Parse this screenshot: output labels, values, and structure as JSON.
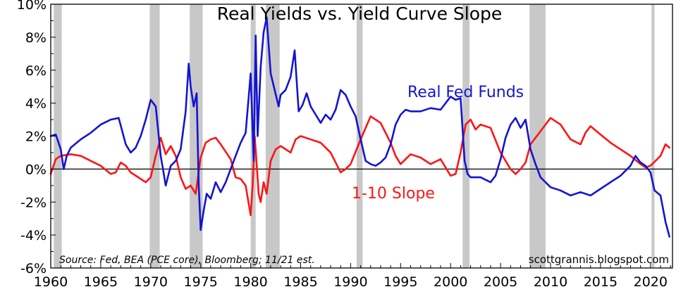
{
  "chart_data": {
    "type": "line",
    "title": "Real Yields vs. Yield Curve Slope",
    "source_note": "Source: Fed, BEA (PCE core), Bloomberg; 11/21 est.",
    "credit": "scottgrannis.blogspot.com",
    "xlim": [
      1960,
      2022.2
    ],
    "ylim": [
      -6,
      10
    ],
    "y_ticks": [
      -6,
      -4,
      -2,
      0,
      2,
      4,
      6,
      8,
      10
    ],
    "y_tick_labels": [
      "-6%",
      "-4%",
      "-2%",
      "0%",
      "2%",
      "4%",
      "6%",
      "8%",
      "10%"
    ],
    "x_ticks": [
      1960,
      1965,
      1970,
      1975,
      1980,
      1985,
      1990,
      1995,
      2000,
      2005,
      2010,
      2015,
      2020
    ],
    "x_tick_labels": [
      "1960",
      "1965",
      "1970",
      "1975",
      "1980",
      "1985",
      "1990",
      "1995",
      "2000",
      "2005",
      "2010",
      "2015",
      "2020"
    ],
    "grid": false,
    "zero_line": true,
    "recessions": [
      [
        1960.3,
        1961.1
      ],
      [
        1969.9,
        1970.9
      ],
      [
        1973.9,
        1975.2
      ],
      [
        1980.0,
        1980.5
      ],
      [
        1981.5,
        1982.9
      ],
      [
        1990.6,
        1991.2
      ],
      [
        2001.2,
        2001.9
      ],
      [
        2007.9,
        2009.5
      ],
      [
        2020.1,
        2020.4
      ]
    ],
    "series": [
      {
        "name": "Real Fed Funds",
        "color": "#1414d2",
        "x": [
          1960.0,
          1960.5,
          1961.0,
          1961.3,
          1961.6,
          1962.0,
          1963.0,
          1964.0,
          1965.0,
          1966.0,
          1966.8,
          1967.5,
          1968.0,
          1968.5,
          1969.0,
          1969.5,
          1970.0,
          1970.5,
          1971.0,
          1971.5,
          1972.0,
          1972.5,
          1973.0,
          1973.5,
          1973.8,
          1974.0,
          1974.3,
          1974.6,
          1974.8,
          1975.0,
          1975.3,
          1975.6,
          1976.0,
          1976.5,
          1977.0,
          1977.5,
          1978.0,
          1978.5,
          1979.0,
          1979.5,
          1980.0,
          1980.3,
          1980.5,
          1980.7,
          1981.0,
          1981.3,
          1981.6,
          1982.0,
          1982.4,
          1982.8,
          1983.0,
          1983.5,
          1984.0,
          1984.4,
          1984.8,
          1985.2,
          1985.6,
          1986.0,
          1986.5,
          1987.0,
          1987.5,
          1988.0,
          1988.5,
          1989.0,
          1989.5,
          1990.0,
          1990.5,
          1991.0,
          1991.5,
          1992.0,
          1992.5,
          1993.0,
          1993.5,
          1994.0,
          1994.5,
          1995.0,
          1995.5,
          1996.0,
          1997.0,
          1998.0,
          1999.0,
          2000.0,
          2000.5,
          2001.0,
          2001.4,
          2001.7,
          2002.0,
          2003.0,
          2004.0,
          2004.5,
          2005.0,
          2005.5,
          2006.0,
          2006.5,
          2007.0,
          2007.5,
          2008.0,
          2008.5,
          2009.0,
          2010.0,
          2011.0,
          2012.0,
          2013.0,
          2014.0,
          2015.0,
          2016.0,
          2017.0,
          2018.0,
          2018.5,
          2019.0,
          2019.5,
          2020.0,
          2020.4,
          2021.0,
          2021.5,
          2021.9
        ],
        "y": [
          2.0,
          2.1,
          1.2,
          0.0,
          0.8,
          1.3,
          1.8,
          2.2,
          2.7,
          3.0,
          3.1,
          1.5,
          1.0,
          1.3,
          2.0,
          3.0,
          4.2,
          3.8,
          0.8,
          -1.0,
          0.2,
          0.5,
          1.2,
          3.5,
          6.4,
          5.0,
          3.8,
          4.6,
          -1.0,
          -3.7,
          -2.5,
          -1.5,
          -1.8,
          -0.8,
          -1.4,
          -0.8,
          0.0,
          0.8,
          1.6,
          2.2,
          5.8,
          0.5,
          8.1,
          2.0,
          6.2,
          8.3,
          9.2,
          5.8,
          4.8,
          3.8,
          4.5,
          4.8,
          5.6,
          7.2,
          3.5,
          3.9,
          4.6,
          3.8,
          3.3,
          2.8,
          3.3,
          3.0,
          3.6,
          4.8,
          4.5,
          3.8,
          3.2,
          1.8,
          0.5,
          0.3,
          0.2,
          0.4,
          0.7,
          1.5,
          2.7,
          3.3,
          3.6,
          3.5,
          3.5,
          3.7,
          3.6,
          4.4,
          4.2,
          4.3,
          0.5,
          -0.3,
          -0.5,
          -0.5,
          -0.8,
          -0.4,
          0.6,
          1.9,
          2.7,
          3.1,
          2.5,
          3.0,
          1.2,
          0.3,
          -0.5,
          -1.1,
          -1.3,
          -1.6,
          -1.4,
          -1.6,
          -1.2,
          -0.8,
          -0.4,
          0.2,
          0.8,
          0.4,
          0.2,
          -0.2,
          -1.3,
          -1.6,
          -3.2,
          -4.1
        ]
      },
      {
        "name": "1-10 Slope",
        "color": "#ff1414",
        "x": [
          1960.0,
          1960.5,
          1961.0,
          1962.0,
          1963.0,
          1964.0,
          1965.0,
          1966.0,
          1966.5,
          1967.0,
          1967.5,
          1968.0,
          1969.0,
          1969.5,
          1970.0,
          1970.5,
          1971.0,
          1971.5,
          1972.0,
          1972.5,
          1973.0,
          1973.5,
          1974.0,
          1974.5,
          1975.0,
          1975.5,
          1976.0,
          1976.5,
          1977.0,
          1978.0,
          1978.5,
          1979.0,
          1979.5,
          1980.0,
          1980.2,
          1980.4,
          1980.6,
          1980.8,
          1981.0,
          1981.3,
          1981.6,
          1982.0,
          1982.5,
          1983.0,
          1984.0,
          1984.5,
          1985.0,
          1986.0,
          1987.0,
          1988.0,
          1989.0,
          1989.5,
          1990.0,
          1991.0,
          1992.0,
          1993.0,
          1994.0,
          1994.5,
          1995.0,
          1996.0,
          1997.0,
          1998.0,
          1999.0,
          2000.0,
          2000.5,
          2001.0,
          2001.5,
          2002.0,
          2002.5,
          2003.0,
          2004.0,
          2005.0,
          2006.0,
          2006.5,
          2007.0,
          2007.5,
          2008.0,
          2009.0,
          2010.0,
          2010.5,
          2011.0,
          2012.0,
          2013.0,
          2013.5,
          2014.0,
          2015.0,
          2016.0,
          2017.0,
          2018.0,
          2019.0,
          2019.5,
          2020.0,
          2020.5,
          2021.0,
          2021.5,
          2021.9
        ],
        "y": [
          -0.3,
          0.6,
          0.8,
          0.9,
          0.8,
          0.5,
          0.2,
          -0.3,
          -0.2,
          0.4,
          0.2,
          -0.2,
          -0.6,
          -0.8,
          -0.5,
          0.8,
          1.9,
          0.9,
          1.4,
          0.8,
          -0.5,
          -1.2,
          -1.0,
          -1.5,
          0.7,
          1.6,
          1.8,
          1.9,
          1.5,
          0.6,
          -0.5,
          -0.6,
          -1.0,
          -2.8,
          -1.0,
          2.0,
          0.3,
          -1.5,
          -2.0,
          -0.8,
          -1.5,
          0.5,
          1.2,
          1.4,
          1.0,
          1.8,
          2.0,
          1.8,
          1.6,
          1.0,
          -0.2,
          0.0,
          0.3,
          1.8,
          3.2,
          2.8,
          1.6,
          0.8,
          0.3,
          0.9,
          0.7,
          0.3,
          0.6,
          -0.4,
          -0.3,
          1.0,
          2.7,
          3.0,
          2.4,
          2.7,
          2.5,
          1.0,
          0.0,
          -0.3,
          0.0,
          0.4,
          1.5,
          2.3,
          3.1,
          2.9,
          2.7,
          1.8,
          1.5,
          2.2,
          2.6,
          2.1,
          1.6,
          1.2,
          0.8,
          0.3,
          0.1,
          0.2,
          0.5,
          0.8,
          1.5,
          1.3
        ]
      }
    ]
  }
}
